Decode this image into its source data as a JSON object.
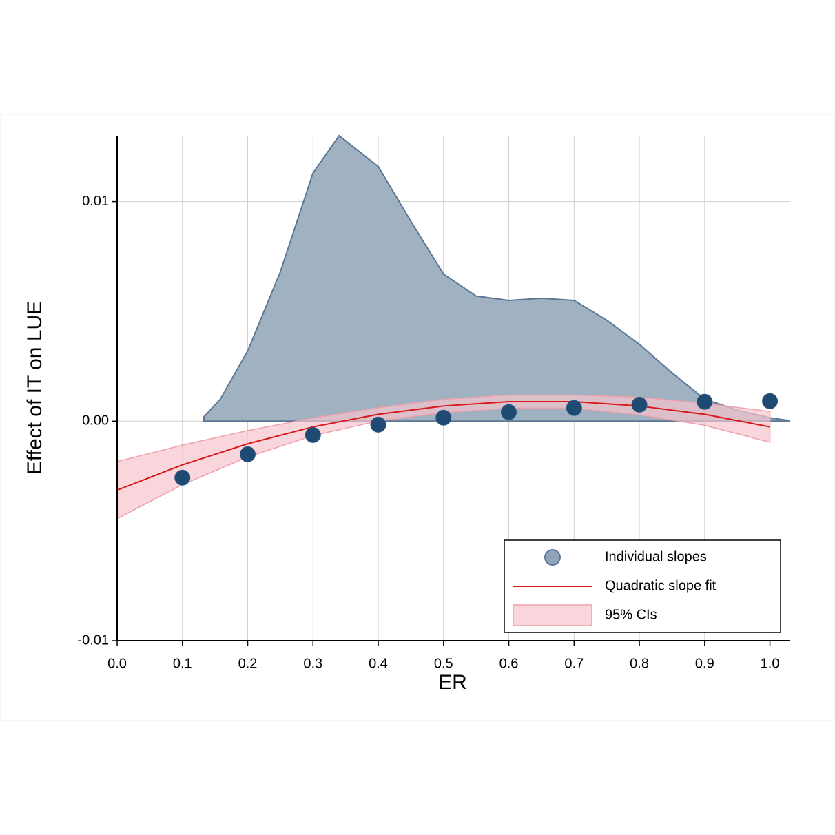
{
  "chart_data": {
    "type": "combo",
    "xlabel": "ER",
    "ylabel": "Effect of IT on LUE",
    "xlim": [
      0,
      1.03
    ],
    "ylim": [
      -0.01,
      0.013
    ],
    "xticks": [
      {
        "value": 0,
        "label": "0.0"
      },
      0.1,
      0.2,
      0.3,
      0.4,
      0.5,
      0.6,
      0.7,
      0.8,
      0.9,
      {
        "value": 1,
        "label": "1.0"
      }
    ],
    "yticks": [
      -0.01,
      {
        "value": 0,
        "label": "0.00"
      },
      0.01
    ],
    "grid": true,
    "legend": "bottom-right",
    "series": [
      {
        "name": "Individual slopes",
        "type": "scatter",
        "color": "#1f4a72",
        "x": [
          0.1,
          0.2,
          0.3,
          0.4,
          0.5,
          0.6,
          0.7,
          0.8,
          0.9,
          1.0
        ],
        "values": [
          -0.00257,
          -0.00151,
          -0.00063,
          -0.00016,
          0.00016,
          0.00041,
          0.0006,
          0.00075,
          0.00088,
          0.00091
        ]
      },
      {
        "name": "Quadratic slope fit",
        "type": "line",
        "color": "#d7191c",
        "x": [
          0,
          0.1,
          0.2,
          0.3,
          0.4,
          0.5,
          0.6,
          0.7,
          0.8,
          0.9,
          1.0
        ],
        "values": [
          -0.00314,
          -0.00199,
          -0.00103,
          -0.00026,
          0.00031,
          0.00069,
          0.00089,
          0.00089,
          0.00069,
          0.00031,
          -0.00026
        ]
      },
      {
        "name": "95% CIs",
        "type": "band",
        "color": "#f7c5cc",
        "x": [
          0,
          0.1,
          0.2,
          0.3,
          0.4,
          0.5,
          0.6,
          0.7,
          0.8,
          0.9,
          1.0
        ],
        "lower": [
          -0.00444,
          -0.00289,
          -0.00163,
          -0.00066,
          1e-05,
          0.00039,
          0.00059,
          0.00059,
          0.00029,
          -0.00019,
          -0.00096
        ],
        "upper": [
          -0.00184,
          -0.00109,
          -0.00043,
          0.00014,
          0.00061,
          0.00099,
          0.00119,
          0.00119,
          0.00109,
          0.00081,
          0.00044
        ]
      },
      {
        "type": "area",
        "color": "#a0b1c2",
        "x": [
          0.133,
          0.158,
          0.2,
          0.25,
          0.3,
          0.34,
          0.4,
          0.45,
          0.5,
          0.55,
          0.6,
          0.65,
          0.7,
          0.75,
          0.8,
          0.85,
          0.9,
          0.95,
          1.0,
          1.03
        ],
        "values": [
          0.0002,
          0.001,
          0.0032,
          0.0068,
          0.0113,
          0.013,
          0.0116,
          0.0091,
          0.0067,
          0.0057,
          0.0055,
          0.0056,
          0.0055,
          0.0046,
          0.0035,
          0.0022,
          0.001,
          0.0005,
          0.00015,
          3e-05
        ]
      }
    ]
  }
}
